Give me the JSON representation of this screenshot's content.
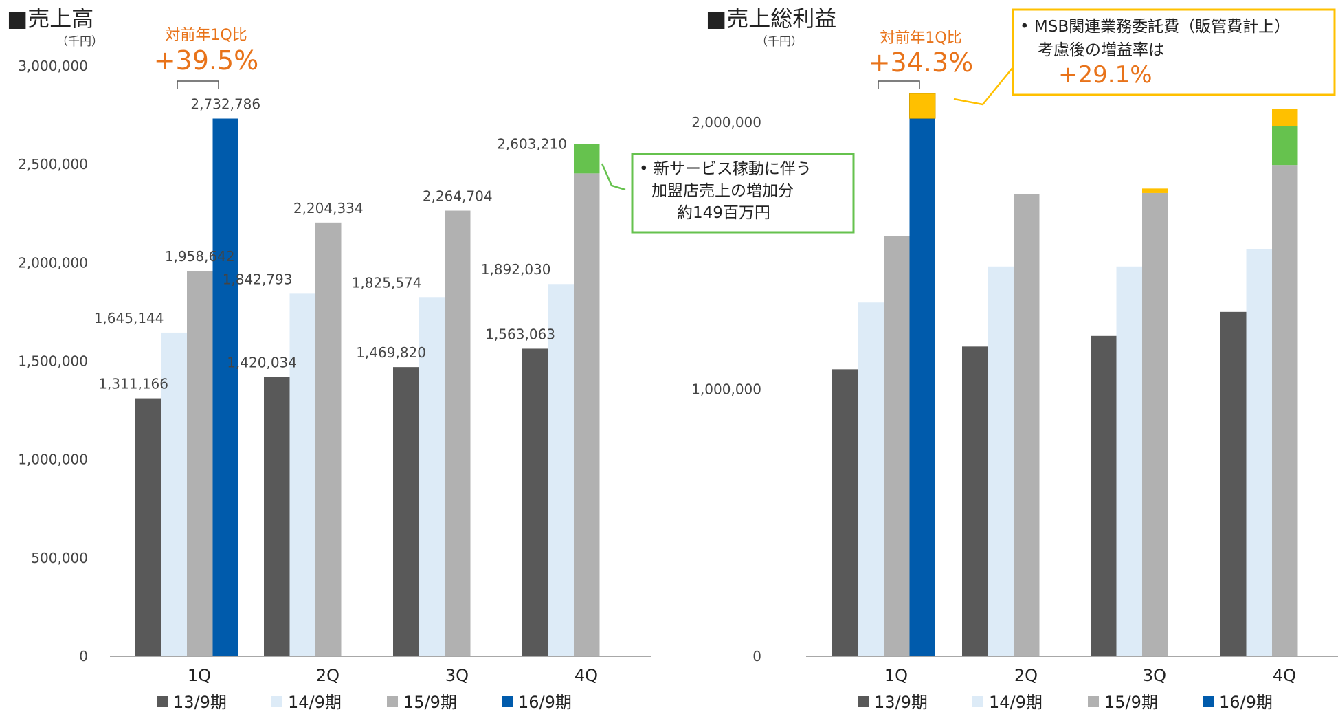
{
  "series_colors": [
    "#595959",
    "#ddebf7",
    "#b1b1b1",
    "#005bac"
  ],
  "accent_colors": {
    "green": "#66c24e",
    "yellow": "#ffc000",
    "orange": "#e8731a"
  },
  "chart_data": [
    {
      "type": "bar",
      "title": "■売上高",
      "unit": "（千円）",
      "categories": [
        "1Q",
        "2Q",
        "3Q",
        "4Q"
      ],
      "series": [
        {
          "name": "13/9期",
          "values": [
            1311166,
            1420034,
            1469820,
            1563063
          ]
        },
        {
          "name": "14/9期",
          "values": [
            1645144,
            1842793,
            1825574,
            1892030
          ]
        },
        {
          "name": "15/9期",
          "values": [
            1958642,
            2204334,
            2264704,
            2454000
          ]
        },
        {
          "name": "16/9期",
          "values": [
            2732786,
            null,
            null,
            null
          ]
        }
      ],
      "stack_overlays": [
        {
          "category": "4Q",
          "series": "15/9期",
          "color": "green",
          "from": 2454000,
          "to": 2603210
        }
      ],
      "data_labels": [
        {
          "category": "1Q",
          "series": "13/9期",
          "text": "1,311,166"
        },
        {
          "category": "1Q",
          "series": "14/9期",
          "text": "1,645,144"
        },
        {
          "category": "1Q",
          "series": "15/9期",
          "text": "1,958,642"
        },
        {
          "category": "1Q",
          "series": "16/9期",
          "text": "2,732,786"
        },
        {
          "category": "2Q",
          "series": "13/9期",
          "text": "1,420,034"
        },
        {
          "category": "2Q",
          "series": "14/9期",
          "text": "1,842,793"
        },
        {
          "category": "2Q",
          "series": "15/9期",
          "text": "2,204,334"
        },
        {
          "category": "3Q",
          "series": "13/9期",
          "text": "1,469,820"
        },
        {
          "category": "3Q",
          "series": "14/9期",
          "text": "1,825,574"
        },
        {
          "category": "3Q",
          "series": "15/9期",
          "text": "2,264,704"
        },
        {
          "category": "4Q",
          "series": "13/9期",
          "text": "1,563,063"
        },
        {
          "category": "4Q",
          "series": "14/9期",
          "text": "1,892,030"
        },
        {
          "category": "4Q",
          "series": "15/9期",
          "text": "2,603,210"
        }
      ],
      "y_ticks": [
        "0",
        "500,000",
        "1,000,000",
        "1,500,000",
        "2,000,000",
        "2,500,000",
        "3,000,000"
      ],
      "ylim": [
        0,
        3000000
      ],
      "comparison": {
        "label": "対前年1Q比",
        "value": "+39.5%"
      },
      "callout": {
        "lines": [
          "• 新サービス稼動に伴う",
          "加盟店売上の増加分",
          "約149百万円"
        ],
        "border": "green"
      },
      "legend_position": "bottom"
    },
    {
      "type": "bar",
      "title": "■売上総利益",
      "unit": "（千円）",
      "categories": [
        "1Q",
        "2Q",
        "3Q",
        "4Q"
      ],
      "series": [
        {
          "name": "13/9期",
          "values": [
            1075000,
            1160000,
            1200000,
            1290000
          ]
        },
        {
          "name": "14/9期",
          "values": [
            1325000,
            1460000,
            1460000,
            1525000
          ]
        },
        {
          "name": "15/9期",
          "values": [
            1575000,
            1730000,
            1735000,
            1840000
          ]
        },
        {
          "name": "16/9期",
          "values": [
            2015000,
            null,
            null,
            null
          ]
        }
      ],
      "stack_overlays": [
        {
          "category": "1Q",
          "series": "16/9期",
          "color": "yellow",
          "from": 2015000,
          "to": 2108000
        },
        {
          "category": "3Q",
          "series": "15/9期",
          "color": "yellow",
          "from": 1735000,
          "to": 1752000
        },
        {
          "category": "4Q",
          "series": "15/9期",
          "color": "green",
          "from": 1840000,
          "to": 1985000
        },
        {
          "category": "4Q",
          "series": "15/9期",
          "color": "yellow",
          "from": 1985000,
          "to": 2050000
        }
      ],
      "y_ticks": [
        "0",
        "1,000,000",
        "2,000,000"
      ],
      "ylim": [
        0,
        2000000
      ],
      "comparison": {
        "label": "対前年1Q比",
        "value": "+34.3%"
      },
      "callout": {
        "lines": [
          "• MSB関連業務委託費（販管費計上）",
          "考慮後の増益率は",
          "+29.1%"
        ],
        "border": "yellow"
      },
      "legend_position": "bottom"
    }
  ]
}
